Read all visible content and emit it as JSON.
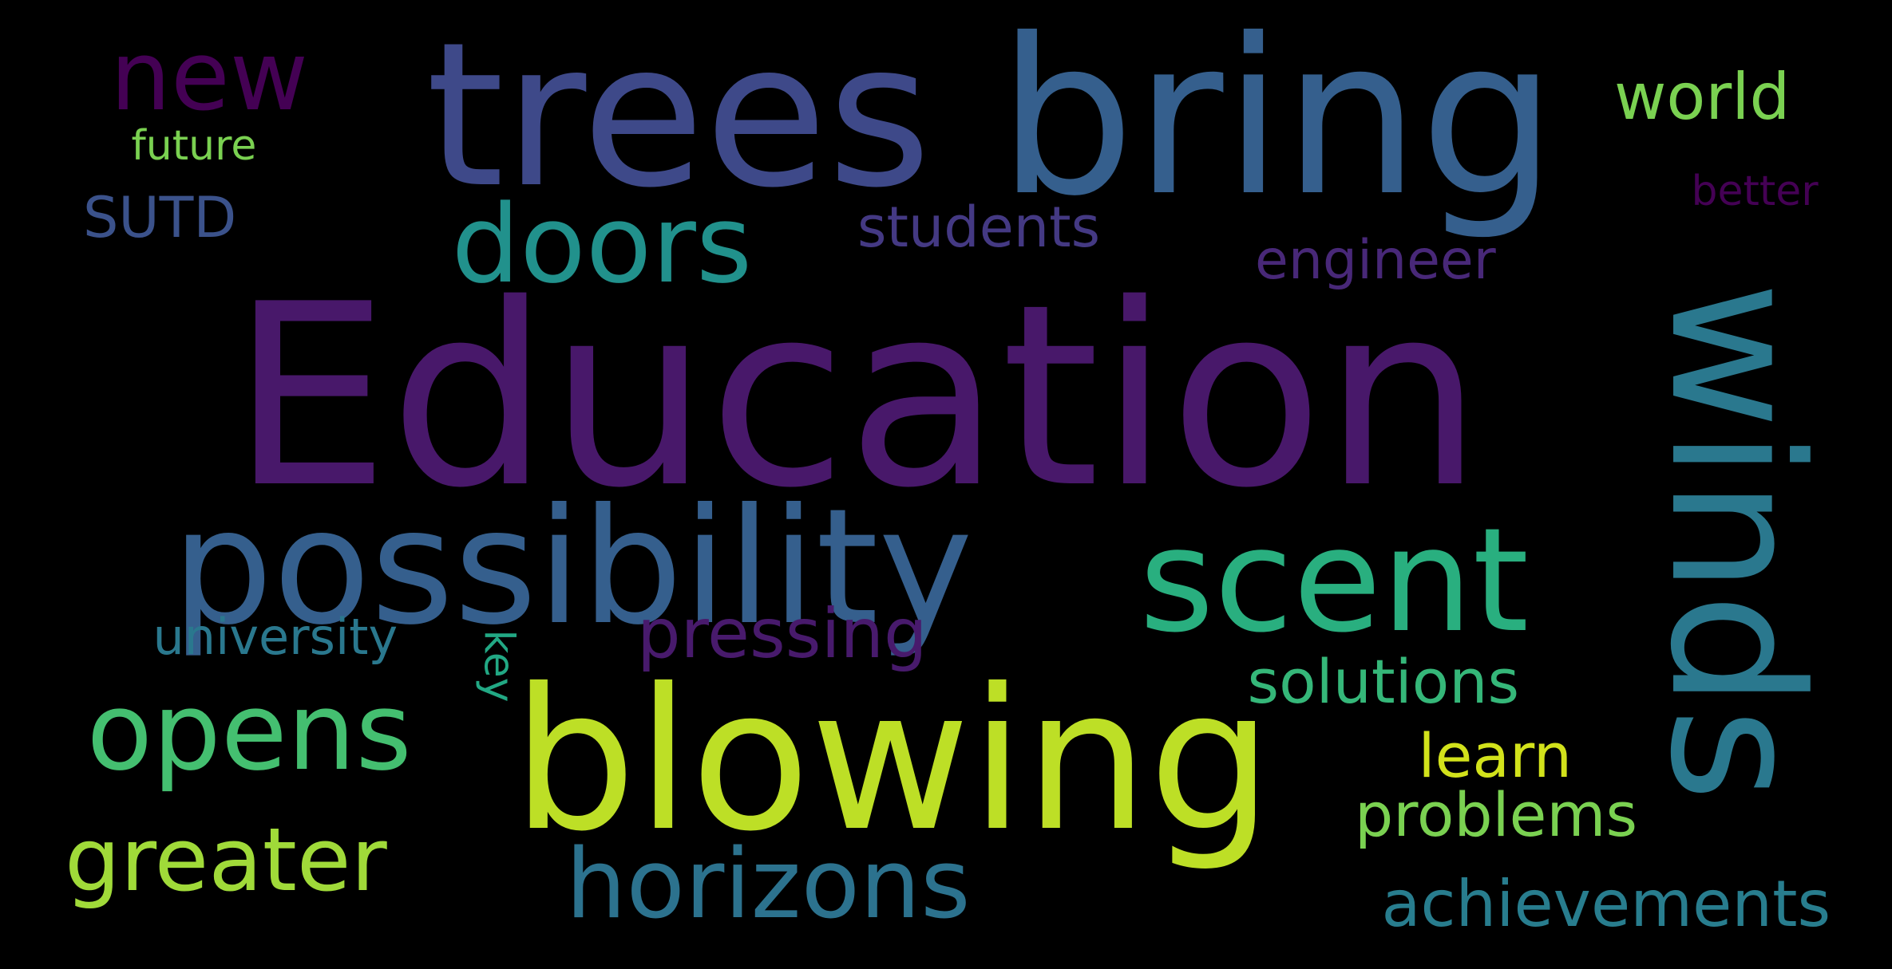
{
  "background_color": "#000000",
  "words": [
    {
      "id": "education",
      "text": "Education",
      "color": "#48186a",
      "rotated": false
    },
    {
      "id": "trees",
      "text": "trees",
      "color": "#3e4989",
      "rotated": false
    },
    {
      "id": "bring",
      "text": "bring",
      "color": "#355f8d",
      "rotated": false
    },
    {
      "id": "new",
      "text": "new",
      "color": "#440154",
      "rotated": false
    },
    {
      "id": "world",
      "text": "world",
      "color": "#7ad151",
      "rotated": false
    },
    {
      "id": "future",
      "text": "future",
      "color": "#7ad151",
      "rotated": false
    },
    {
      "id": "better",
      "text": "better",
      "color": "#440154",
      "rotated": false
    },
    {
      "id": "sutd",
      "text": "SUTD",
      "color": "#3b528b",
      "rotated": false
    },
    {
      "id": "doors",
      "text": "doors",
      "color": "#21918c",
      "rotated": false
    },
    {
      "id": "students",
      "text": "students",
      "color": "#443983",
      "rotated": false
    },
    {
      "id": "engineer",
      "text": "engineer",
      "color": "#482878",
      "rotated": false
    },
    {
      "id": "winds",
      "text": "winds",
      "color": "#2a788e",
      "rotated": true
    },
    {
      "id": "possibility",
      "text": "possibility",
      "color": "#355f8d",
      "rotated": false
    },
    {
      "id": "scent",
      "text": "scent",
      "color": "#29af7f",
      "rotated": false
    },
    {
      "id": "university",
      "text": "university",
      "color": "#2a788e",
      "rotated": false
    },
    {
      "id": "key",
      "text": "key",
      "color": "#22a884",
      "rotated": true
    },
    {
      "id": "pressing",
      "text": "pressing",
      "color": "#481a6c",
      "rotated": false
    },
    {
      "id": "solutions",
      "text": "solutions",
      "color": "#35b779",
      "rotated": false
    },
    {
      "id": "opens",
      "text": "opens",
      "color": "#44bf70",
      "rotated": false
    },
    {
      "id": "blowing",
      "text": "blowing",
      "color": "#bddf26",
      "rotated": false
    },
    {
      "id": "learn",
      "text": "learn",
      "color": "#d2e21b",
      "rotated": false
    },
    {
      "id": "problems",
      "text": "problems",
      "color": "#7ad151",
      "rotated": false
    },
    {
      "id": "greater",
      "text": "greater",
      "color": "#a0da39",
      "rotated": false
    },
    {
      "id": "horizons",
      "text": "horizons",
      "color": "#2c728e",
      "rotated": false
    },
    {
      "id": "achievements",
      "text": "achievements",
      "color": "#287d8e",
      "rotated": false
    }
  ]
}
